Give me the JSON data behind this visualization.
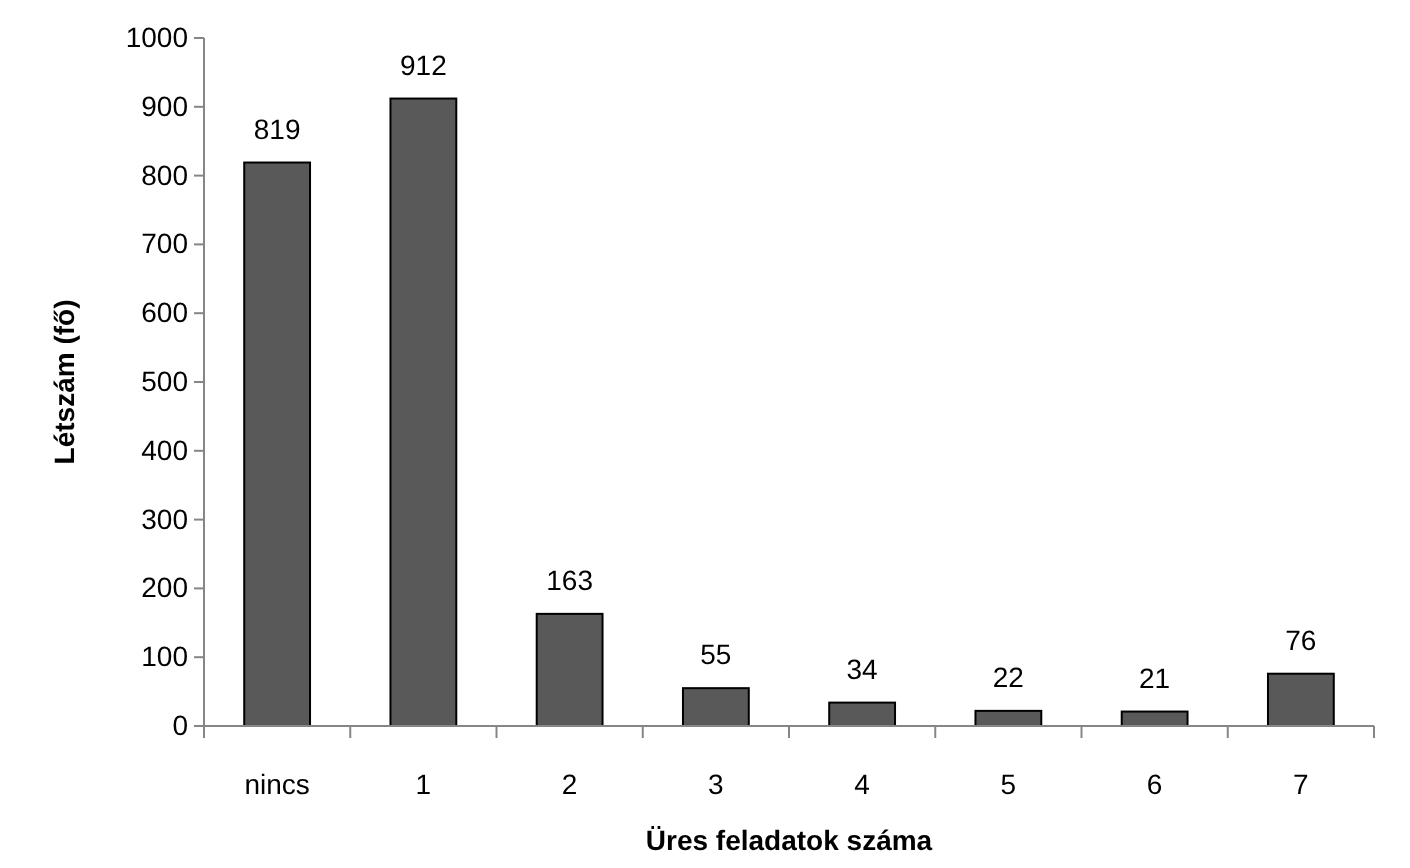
{
  "chart_data": {
    "type": "bar",
    "xlabel": "Üres feladatok száma",
    "ylabel": "Létszám (fő)",
    "categories": [
      "nincs",
      "1",
      "2",
      "3",
      "4",
      "5",
      "6",
      "7"
    ],
    "values": [
      819,
      912,
      163,
      55,
      34,
      22,
      21,
      76
    ],
    "color": "#595959",
    "ylim": [
      0,
      1000
    ],
    "yticks": [
      0,
      100,
      200,
      300,
      400,
      500,
      600,
      700,
      800,
      900,
      1000
    ],
    "grid": false,
    "data_labels": true
  }
}
